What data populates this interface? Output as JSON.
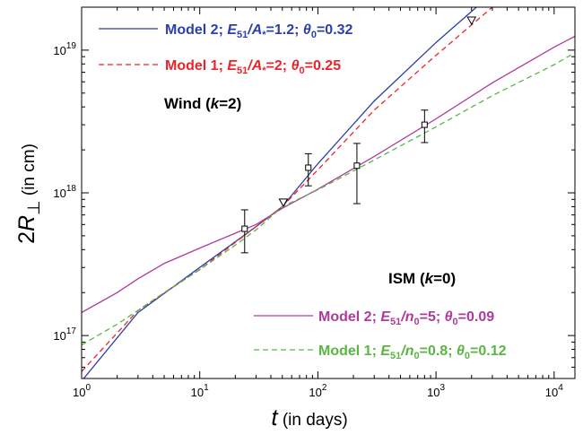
{
  "chart_data": {
    "type": "line",
    "x_scale": "log",
    "y_scale": "log",
    "xlim": [
      1,
      15000
    ],
    "ylim": [
      50000000000000000,
      20000000000000000000
    ],
    "x_ticks": [
      {
        "value": 1,
        "base": "10",
        "exp": "0"
      },
      {
        "value": 10,
        "base": "10",
        "exp": "1"
      },
      {
        "value": 100,
        "base": "10",
        "exp": "2"
      },
      {
        "value": 1000,
        "base": "10",
        "exp": "3"
      },
      {
        "value": 10000,
        "base": "10",
        "exp": "4"
      }
    ],
    "y_ticks": [
      {
        "value": 100000000000000000,
        "base": "10",
        "exp": "17"
      },
      {
        "value": 1000000000000000000,
        "base": "10",
        "exp": "18"
      },
      {
        "value": 10000000000000000000,
        "base": "10",
        "exp": "19"
      }
    ],
    "xlabel": {
      "symbol": "t",
      "unit": " (in days)"
    },
    "ylabel": {
      "prefix": "2",
      "symbol": "R",
      "sub": "⊥",
      "unit": " (in cm)"
    },
    "grid": false,
    "legend_placement": "inside, top-left and bottom-right",
    "series": [
      {
        "name": "Model 2; E51/A*=1.2; θ0=0.32",
        "legend": {
          "pre": "Model 2; ",
          "v1": "E",
          "s1": "51",
          "mid": "/A",
          "s2": "*",
          "post": "=1.2; ",
          "v2": "θ",
          "s3": "0",
          "end": "=0.32"
        },
        "group": "Wind",
        "color": "#2b3fa8",
        "style": "solid",
        "points": [
          [
            1,
            4.8e+16
          ],
          [
            3,
            1.45e+17
          ],
          [
            10,
            3e+17
          ],
          [
            30,
            5.8e+17
          ],
          [
            50,
            8e+17
          ],
          [
            100,
            1.6e+18
          ],
          [
            300,
            4.4e+18
          ],
          [
            1000,
            1.13e+19
          ],
          [
            2200,
            2e+19
          ]
        ]
      },
      {
        "name": "Model 1; E51/A*=2; θ0=0.25",
        "legend": {
          "pre": "Model 1; ",
          "v1": "E",
          "s1": "51",
          "mid": "/A",
          "s2": "*",
          "post": "=2; ",
          "v2": "θ",
          "s3": "0",
          "end": "=0.25"
        },
        "group": "Wind",
        "color": "#e8262a",
        "style": "dashed",
        "points": [
          [
            1,
            5.6e+16
          ],
          [
            3,
            1.5e+17
          ],
          [
            10,
            2.9e+17
          ],
          [
            30,
            5.8e+17
          ],
          [
            50,
            8e+17
          ],
          [
            100,
            1.45e+18
          ],
          [
            300,
            3.8e+18
          ],
          [
            1000,
            9.2e+18
          ],
          [
            3000,
            2e+19
          ]
        ]
      },
      {
        "name": "Model 2; E51/n0=5; θ0=0.09",
        "legend": {
          "pre": "Model 2; ",
          "v1": "E",
          "s1": "51",
          "mid": "/n",
          "s2": "0",
          "post": "=5; ",
          "v2": "θ",
          "s3": "0",
          "end": "=0.09"
        },
        "group": "ISM",
        "color": "#b03a9b",
        "style": "solid",
        "points": [
          [
            1,
            1.45e+17
          ],
          [
            2,
            2e+17
          ],
          [
            3,
            2.5e+17
          ],
          [
            5,
            3.2e+17
          ],
          [
            10,
            4.1e+17
          ],
          [
            30,
            6e+17
          ],
          [
            50,
            7.8e+17
          ],
          [
            100,
            1.06e+18
          ],
          [
            300,
            1.8e+18
          ],
          [
            1000,
            3.3e+18
          ],
          [
            3000,
            5.9e+18
          ],
          [
            10000,
            1.05e+19
          ],
          [
            15000,
            1.25e+19
          ]
        ]
      },
      {
        "name": "Model 1; E51/n0=0.8; θ0=0.12",
        "legend": {
          "pre": "Model 1; ",
          "v1": "E",
          "s1": "51",
          "mid": "/n",
          "s2": "0",
          "post": "=0.8; ",
          "v2": "θ",
          "s3": "0",
          "end": "=0.12"
        },
        "group": "ISM",
        "color": "#59b643",
        "style": "dashed",
        "points": [
          [
            1,
            8.6e+16
          ],
          [
            2,
            1.2e+17
          ],
          [
            3,
            1.5e+17
          ],
          [
            5,
            2e+17
          ],
          [
            10,
            2.9e+17
          ],
          [
            20,
            4.3e+17
          ],
          [
            30,
            5.5e+17
          ],
          [
            50,
            8e+17
          ],
          [
            100,
            1.05e+18
          ],
          [
            300,
            1.7e+18
          ],
          [
            1000,
            2.9e+18
          ],
          [
            3000,
            4.8e+18
          ],
          [
            10000,
            7.9e+18
          ],
          [
            15000,
            9.6e+18
          ]
        ]
      }
    ],
    "data_points": [
      {
        "x": 24,
        "y": 5.6e+17,
        "ylo": 3.8e+17,
        "yhi": 7.6e+17,
        "marker": "square"
      },
      {
        "x": 83,
        "y": 1.5e+18,
        "ylo": 1.12e+18,
        "yhi": 1.88e+18,
        "marker": "square"
      },
      {
        "x": 214,
        "y": 1.55e+18,
        "ylo": 8.4e+17,
        "yhi": 2.22e+18,
        "marker": "square"
      },
      {
        "x": 800,
        "y": 3e+18,
        "ylo": 2.25e+18,
        "yhi": 3.8e+18,
        "marker": "square"
      }
    ],
    "upper_limits": [
      {
        "x": 51,
        "y": 8.6e+17,
        "marker": "triangle-down"
      },
      {
        "x": 2000,
        "y": 1.62e+19,
        "marker": "triangle-down"
      }
    ],
    "annotations": [
      {
        "id": "wind",
        "pre": "Wind (",
        "var": "k",
        "post": "=2)"
      },
      {
        "id": "ism",
        "pre": "ISM (",
        "var": "k",
        "post": "=0)"
      }
    ]
  }
}
